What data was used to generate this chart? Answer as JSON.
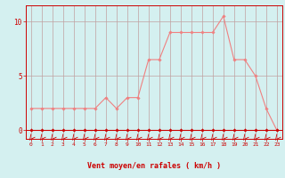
{
  "x": [
    0,
    1,
    2,
    3,
    4,
    5,
    6,
    7,
    8,
    9,
    10,
    11,
    12,
    13,
    14,
    15,
    16,
    17,
    18,
    19,
    20,
    21,
    22,
    23
  ],
  "y_rafales": [
    2,
    2,
    2,
    2,
    2,
    2,
    2,
    3,
    2,
    3,
    3,
    6.5,
    6.5,
    9,
    9,
    9,
    9,
    9,
    10.5,
    6.5,
    6.5,
    5,
    2,
    0
  ],
  "y_moyen": [
    0,
    0,
    0,
    0,
    0,
    0,
    0,
    0,
    0,
    0,
    0,
    0,
    0,
    0,
    0,
    0,
    0,
    0,
    0,
    0,
    0,
    0,
    0,
    0
  ],
  "line_color": "#f08080",
  "moyen_color": "#cc0000",
  "bg_color": "#d4f0f0",
  "grid_color": "#c0a0a0",
  "axis_color": "#cc0000",
  "xlabel": "Vent moyen/en rafales ( km/h )",
  "yticks": [
    0,
    5,
    10
  ],
  "xlim": [
    -0.5,
    23.5
  ],
  "ylim": [
    -0.8,
    11.5
  ]
}
